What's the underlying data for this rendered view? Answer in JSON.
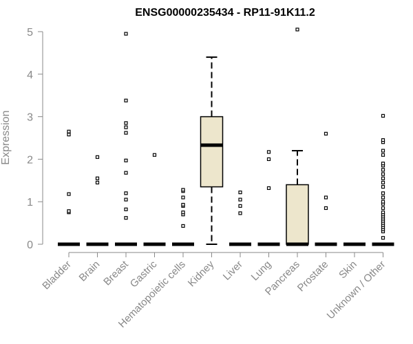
{
  "chart_data": {
    "type": "box",
    "title": "ENSG00000235434 - RP11-91K11.2",
    "xlabel": "",
    "ylabel": "Expression",
    "ylim": [
      0,
      5
    ],
    "yticks": [
      "0",
      "1",
      "2",
      "3",
      "4",
      "5"
    ],
    "categories": [
      "Bladder",
      "Brain",
      "Breast",
      "Gastric",
      "Hematopoietic cells",
      "Kidney",
      "Liver",
      "Lung",
      "Pancreas",
      "Prostate",
      "Skin",
      "Unknown / Other"
    ],
    "boxes": [
      {
        "category": "Bladder",
        "min": 0,
        "q1": 0,
        "median": 0,
        "q3": 0,
        "max": 0,
        "outliers": [
          0.75,
          0.78,
          1.18,
          2.58,
          2.65
        ]
      },
      {
        "category": "Brain",
        "min": 0,
        "q1": 0,
        "median": 0,
        "q3": 0,
        "max": 0,
        "outliers": [
          1.45,
          1.55,
          2.05
        ]
      },
      {
        "category": "Breast",
        "min": 0,
        "q1": 0,
        "median": 0,
        "q3": 0,
        "max": 0,
        "outliers": [
          0.62,
          0.82,
          1.05,
          1.2,
          1.68,
          1.97,
          2.62,
          2.75,
          2.85,
          3.38,
          4.95
        ]
      },
      {
        "category": "Gastric",
        "min": 0,
        "q1": 0,
        "median": 0,
        "q3": 0,
        "max": 0,
        "outliers": [
          2.1
        ]
      },
      {
        "category": "Hematopoietic cells",
        "min": 0,
        "q1": 0,
        "median": 0,
        "q3": 0,
        "max": 0,
        "outliers": [
          0.43,
          0.7,
          0.75,
          0.9,
          0.93,
          1.1,
          1.25,
          1.28
        ]
      },
      {
        "category": "Kidney",
        "min": 0,
        "q1": 1.35,
        "median": 2.33,
        "q3": 3.0,
        "max": 4.4,
        "outliers": []
      },
      {
        "category": "Liver",
        "min": 0,
        "q1": 0,
        "median": 0,
        "q3": 0,
        "max": 0,
        "outliers": [
          0.73,
          0.9,
          1.05,
          1.22
        ]
      },
      {
        "category": "Lung",
        "min": 0,
        "q1": 0,
        "median": 0,
        "q3": 0,
        "max": 0,
        "outliers": [
          1.32,
          2.0,
          2.17
        ]
      },
      {
        "category": "Pancreas",
        "min": 0,
        "q1": 0,
        "median": 0,
        "q3": 1.4,
        "max": 2.2,
        "outliers": [
          5.05
        ]
      },
      {
        "category": "Prostate",
        "min": 0,
        "q1": 0,
        "median": 0,
        "q3": 0,
        "max": 0,
        "outliers": [
          0.85,
          1.1,
          2.6
        ]
      },
      {
        "category": "Skin",
        "min": 0,
        "q1": 0,
        "median": 0,
        "q3": 0,
        "max": 0,
        "outliers": []
      },
      {
        "category": "Unknown / Other",
        "min": 0,
        "q1": 0,
        "median": 0,
        "q3": 0,
        "max": 0,
        "outliers": [
          0.15,
          0.3,
          0.35,
          0.4,
          0.45,
          0.5,
          0.55,
          0.6,
          0.65,
          0.7,
          0.75,
          0.85,
          0.95,
          1.0,
          1.1,
          1.2,
          1.35,
          1.45,
          1.55,
          1.65,
          1.75,
          1.85,
          1.9,
          2.1,
          2.2,
          2.4,
          2.45,
          3.02
        ]
      }
    ],
    "grid": false,
    "legend": "none",
    "box_fill": "#ede6cc",
    "axis_color": "#888888"
  }
}
